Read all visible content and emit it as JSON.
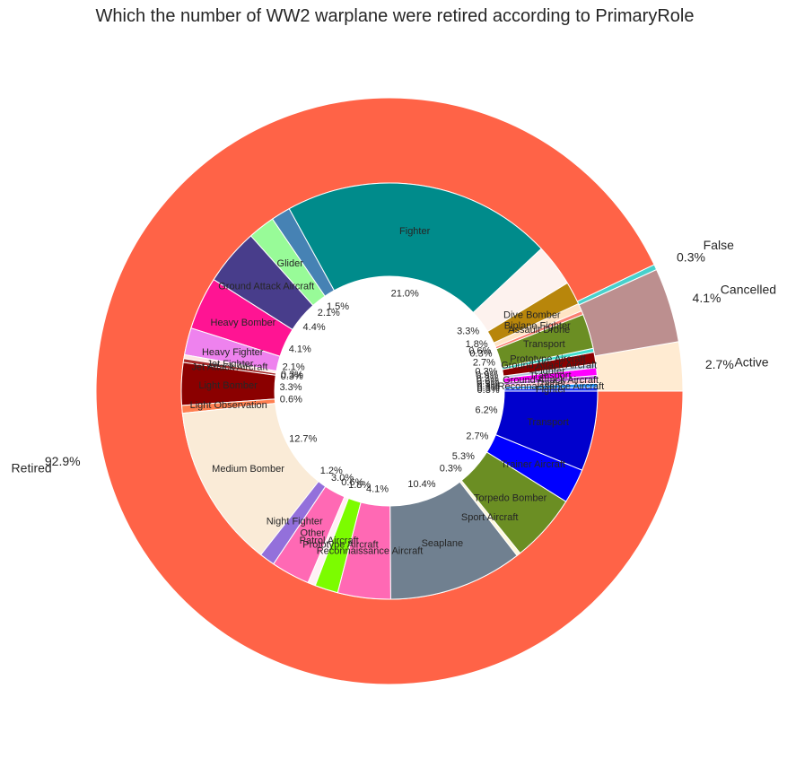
{
  "chart_data": {
    "type": "pie",
    "title": "Which the number of WW2 warplane were retired according to PrimaryRole",
    "outer": [
      {
        "label": "Active",
        "percent": "2.7%",
        "value": 2.7,
        "color": "#ffebd2"
      },
      {
        "label": "Cancelled",
        "percent": "4.1%",
        "value": 4.1,
        "color": "#bc8f8f"
      },
      {
        "label": "False",
        "percent": "0.3%",
        "value": 0.3,
        "color": "#48d1cc"
      },
      {
        "label": "Retired",
        "percent": "92.9%",
        "value": 92.9,
        "color": "#ff6347"
      }
    ],
    "inner": [
      {
        "label": "Fighter",
        "percent": "0.3%",
        "value": 0.3,
        "color": "#1e3cff"
      },
      {
        "label": "Reconnaissance Aircraft",
        "percent": "0.3%",
        "value": 0.3,
        "color": "#1e90ff"
      },
      {
        "label": "Trainer",
        "percent": "0.3%",
        "value": 0.3,
        "color": "#ffb6c1"
      },
      {
        "label": "Ground Attack Aircraft",
        "percent": "0.3%",
        "value": 0.3,
        "color": "#ba55d3"
      },
      {
        "label": "Transport",
        "percent": "0.6%",
        "value": 0.6,
        "color": "#ff00ff"
      },
      {
        "label": "Fighter",
        "percent": "0.3%",
        "value": 0.3,
        "color": "#b0c4de"
      },
      {
        "label": "Ground Attack Aircraft",
        "percent": "0.9%",
        "value": 0.9,
        "color": "#8b0000"
      },
      {
        "label": "Prototype Aircraft",
        "percent": "0.3%",
        "value": 0.3,
        "color": "#40e0d0"
      },
      {
        "label": "Transport",
        "percent": "2.7%",
        "value": 2.7,
        "color": "#6b8e23"
      },
      {
        "label": "Assault Drone",
        "percent": "0.3%",
        "value": 0.3,
        "color": "#fa8072"
      },
      {
        "label": "Biplane Fighter",
        "percent": "0.6%",
        "value": 0.6,
        "color": "#ffe4c4"
      },
      {
        "label": "Dive Bomber",
        "percent": "1.8%",
        "value": 1.8,
        "color": "#b8860b"
      },
      {
        "label": "",
        "percent": "3.3%",
        "value": 3.3,
        "color": "#fdf2ee"
      },
      {
        "label": "Fighter",
        "percent": "21.0%",
        "value": 21.0,
        "color": "#008b8b"
      },
      {
        "label": "",
        "percent": "1.5%",
        "value": 1.5,
        "color": "#4682b4"
      },
      {
        "label": "Glider",
        "percent": "2.1%",
        "value": 2.1,
        "color": "#98fb98"
      },
      {
        "label": "Ground Attack Aircraft",
        "percent": "4.4%",
        "value": 4.4,
        "color": "#483d8b"
      },
      {
        "label": "Heavy Bomber",
        "percent": "4.1%",
        "value": 4.1,
        "color": "#ff1493"
      },
      {
        "label": "Heavy Fighter",
        "percent": "2.1%",
        "value": 2.1,
        "color": "#ee82ee"
      },
      {
        "label": "Jet Fighter",
        "percent": "0.3%",
        "value": 0.3,
        "color": "#ffe4e1"
      },
      {
        "label": "Jet Attack Aircraft",
        "percent": "0.3%",
        "value": 0.3,
        "color": "#a52a2a"
      },
      {
        "label": "Light Bomber",
        "percent": "3.3%",
        "value": 3.3,
        "color": "#8b0000"
      },
      {
        "label": "Light Observation",
        "percent": "0.6%",
        "value": 0.6,
        "color": "#ff7f50"
      },
      {
        "label": "Medium Bomber",
        "percent": "12.7%",
        "value": 12.7,
        "color": "#faebd7"
      },
      {
        "label": "Night Fighter",
        "percent": "1.2%",
        "value": 1.2,
        "color": "#9370db"
      },
      {
        "label": "Other",
        "percent": "3.0%",
        "value": 3.0,
        "color": "#ff69b4"
      },
      {
        "label": "Patrol Aircraft",
        "percent": "0.6%",
        "value": 0.6,
        "color": "#fff0f5"
      },
      {
        "label": "Prototype Aircraft",
        "percent": "1.8%",
        "value": 1.8,
        "color": "#7cfc00"
      },
      {
        "label": "Reconnaissance Aircraft",
        "percent": "4.1%",
        "value": 4.1,
        "color": "#ff69b4"
      },
      {
        "label": "Seaplane",
        "percent": "10.4%",
        "value": 10.4,
        "color": "#708090"
      },
      {
        "label": "Sport Aircraft",
        "percent": "0.3%",
        "value": 0.3,
        "color": "#fff8dc"
      },
      {
        "label": "Torpedo Bomber",
        "percent": "5.3%",
        "value": 5.3,
        "color": "#6b8e23"
      },
      {
        "label": "Trainer Aircraft",
        "percent": "2.7%",
        "value": 2.7,
        "color": "#0000ff"
      },
      {
        "label": "Transport",
        "percent": "6.2%",
        "value": 6.2,
        "color": "#0000cd"
      }
    ]
  }
}
